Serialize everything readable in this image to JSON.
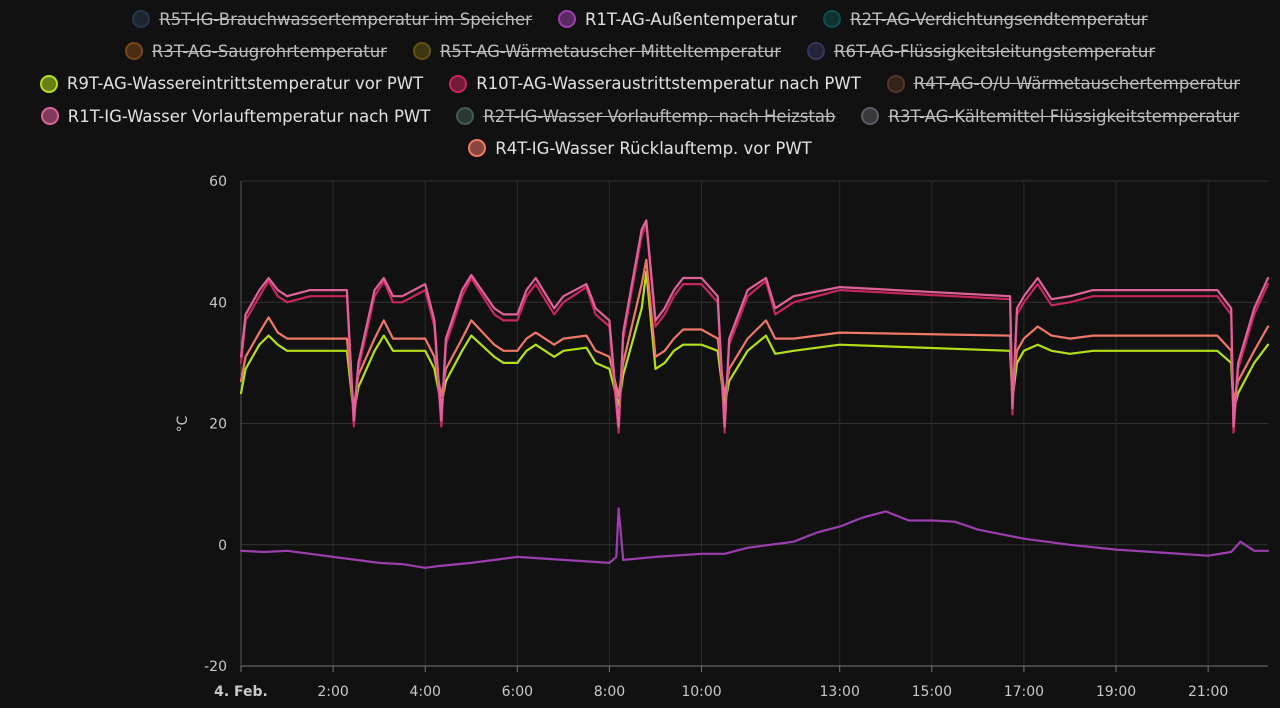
{
  "legend": [
    {
      "label": "R5T-IG-Brauchwassertemperatur im Speicher",
      "color": "#3e5d86",
      "visible": false,
      "row": 0
    },
    {
      "label": "R1T-AG-Außentemperatur",
      "color": "#9b3fae",
      "visible": true,
      "row": 0
    },
    {
      "label": "R2T-AG-Verdichtungsendtemperatur",
      "color": "#0a8f8a",
      "visible": false,
      "row": 0
    },
    {
      "label": "R3T-AG-Saugrohrtemperatur",
      "color": "#e07b18",
      "visible": false,
      "row": 1
    },
    {
      "label": "R5T-AG-Wärmetauscher Mitteltemperatur",
      "color": "#b59410",
      "visible": false,
      "row": 1
    },
    {
      "label": "R6T-AG-Flüssigkeitsleitungstemperatur",
      "color": "#5a5ea8",
      "visible": false,
      "row": 1
    },
    {
      "label": "R9T-AG-Wassereintrittstemperatur vor PWT",
      "color": "#b4e018",
      "visible": true,
      "row": 2
    },
    {
      "label": "R10T-AG-Wasseraustrittstemperatur nach PWT",
      "color": "#c8265e",
      "visible": true,
      "row": 2
    },
    {
      "label": "R4T-AG-O/U Wärmetauschertemperatur",
      "color": "#9c5a3a",
      "visible": false,
      "row": 2
    },
    {
      "label": "R1T-IG-Wasser Vorlauftemperatur nach PWT",
      "color": "#e0629c",
      "visible": true,
      "row": 3
    },
    {
      "label": "R2T-IG-Wasser Vorlauftemp. nach Heizstab",
      "color": "#6fa99a",
      "visible": false,
      "row": 3
    },
    {
      "label": "R3T-AG-Kältemittel Flüssigkeitstemperatur",
      "color": "#a8a4b8",
      "visible": false,
      "row": 3
    },
    {
      "label": "R4T-IG-Wasser Rücklauftemp. vor PWT",
      "color": "#f07868",
      "visible": true,
      "row": 4
    }
  ],
  "chart_data": {
    "type": "line",
    "ylabel": "°C",
    "ylim": [
      -20,
      60
    ],
    "yticks": [
      -20,
      0,
      20,
      40,
      60
    ],
    "xlim": [
      0,
      22.3
    ],
    "xticks": [
      {
        "v": 0,
        "label": "4. Feb.",
        "bold": true
      },
      {
        "v": 2,
        "label": "2:00"
      },
      {
        "v": 4,
        "label": "4:00"
      },
      {
        "v": 6,
        "label": "6:00"
      },
      {
        "v": 8,
        "label": "8:00"
      },
      {
        "v": 10,
        "label": "10:00"
      },
      {
        "v": 13,
        "label": "13:00"
      },
      {
        "v": 15,
        "label": "15:00"
      },
      {
        "v": 17,
        "label": "17:00"
      },
      {
        "v": 19,
        "label": "19:00"
      },
      {
        "v": 21,
        "label": "21:00"
      }
    ],
    "grid": true,
    "series": [
      {
        "name": "R1T-AG-Außentemperatur",
        "color": "#9b3fae",
        "x": [
          0,
          0.5,
          1,
          1.5,
          2,
          2.5,
          3,
          3.5,
          4,
          4.3,
          5,
          6,
          7,
          8,
          8.15,
          8.2,
          8.3,
          9,
          10,
          10.5,
          11,
          12,
          12.5,
          13,
          13.5,
          14,
          14.5,
          15,
          15.5,
          16,
          17,
          18,
          19,
          20,
          21,
          21.5,
          21.7,
          22,
          22.3
        ],
        "y": [
          -1,
          -1.2,
          -1,
          -1.5,
          -2,
          -2.5,
          -3,
          -3.2,
          -3.8,
          -3.5,
          -3,
          -2,
          -2.5,
          -3,
          -2,
          6,
          -2.5,
          -2,
          -1.5,
          -1.5,
          -0.5,
          0.5,
          2,
          3,
          4.5,
          5.5,
          4,
          4,
          3.8,
          2.5,
          1,
          0,
          -0.8,
          -1.3,
          -1.8,
          -1.2,
          0.5,
          -1,
          -1
        ]
      },
      {
        "name": "R9T-AG-Wassereintrittstemperatur vor PWT",
        "color": "#b4e018",
        "x": [
          0,
          0.1,
          0.4,
          0.6,
          0.8,
          1.0,
          1.5,
          2.3,
          2.45,
          2.55,
          2.9,
          3.1,
          3.3,
          3.5,
          4.0,
          4.2,
          4.35,
          4.45,
          4.8,
          5.0,
          5.5,
          5.7,
          6.0,
          6.2,
          6.4,
          6.8,
          7.0,
          7.5,
          7.7,
          8.0,
          8.2,
          8.3,
          8.7,
          8.8,
          9.0,
          9.2,
          9.4,
          9.6,
          9.8,
          10.0,
          10.35,
          10.5,
          10.6,
          11.0,
          11.4,
          11.6,
          12.0,
          13.0,
          16.7,
          16.75,
          16.85,
          17.0,
          17.3,
          17.6,
          18.0,
          18.5,
          21.2,
          21.5,
          21.55,
          21.65,
          22.0,
          22.3
        ],
        "y": [
          25,
          29,
          33,
          34.5,
          33,
          32,
          32,
          32,
          21.5,
          26,
          32,
          34.5,
          32,
          32,
          32,
          29,
          23,
          27,
          32,
          34.5,
          31,
          30,
          30,
          32,
          33,
          31,
          32,
          32.5,
          30,
          29,
          23,
          28,
          39,
          45,
          29,
          30,
          32,
          33,
          33,
          33,
          32,
          23,
          27,
          32,
          34.5,
          31.5,
          32,
          33,
          32,
          24,
          30,
          32,
          33,
          32,
          31.5,
          32,
          32,
          30,
          22,
          25,
          30,
          33
        ]
      },
      {
        "name": "R4T-IG-Wasser Rücklauftemp. vor PWT",
        "color": "#f07868",
        "x": [
          0,
          0.1,
          0.4,
          0.6,
          0.8,
          1.0,
          1.5,
          2.3,
          2.45,
          2.55,
          2.9,
          3.1,
          3.3,
          3.5,
          4.0,
          4.2,
          4.35,
          4.45,
          4.8,
          5.0,
          5.5,
          5.7,
          6.0,
          6.2,
          6.4,
          6.8,
          7.0,
          7.5,
          7.7,
          8.0,
          8.2,
          8.3,
          8.7,
          8.8,
          9.0,
          9.2,
          9.4,
          9.6,
          9.8,
          10.0,
          10.35,
          10.5,
          10.6,
          11.0,
          11.4,
          11.6,
          12.0,
          13.0,
          16.7,
          16.75,
          16.85,
          17.0,
          17.3,
          17.6,
          18.0,
          18.5,
          21.2,
          21.5,
          21.55,
          21.65,
          22.0,
          22.3
        ],
        "y": [
          27,
          31,
          35,
          37.5,
          35,
          34,
          34,
          34,
          22.5,
          28,
          34,
          37,
          34,
          34,
          34,
          31,
          24.5,
          29,
          34,
          37,
          33,
          32,
          32,
          34,
          35,
          33,
          34,
          34.5,
          32,
          31,
          24.5,
          30,
          43,
          47,
          31,
          32,
          34,
          35.5,
          35.5,
          35.5,
          34,
          24.5,
          29,
          34,
          37,
          34,
          34,
          35,
          34.5,
          25.5,
          32,
          34,
          36,
          34.5,
          34,
          34.5,
          34.5,
          32,
          23.5,
          27,
          32,
          36
        ]
      },
      {
        "name": "R10T-AG-Wasseraustrittstemperatur nach PWT",
        "color": "#c8265e",
        "x": [
          0,
          0.1,
          0.4,
          0.6,
          0.8,
          1.0,
          1.5,
          2.3,
          2.45,
          2.55,
          2.9,
          3.1,
          3.3,
          3.5,
          4.0,
          4.2,
          4.35,
          4.45,
          4.8,
          5.0,
          5.5,
          5.7,
          6.0,
          6.2,
          6.4,
          6.8,
          7.0,
          7.5,
          7.7,
          8.0,
          8.2,
          8.3,
          8.7,
          8.8,
          9.0,
          9.2,
          9.4,
          9.6,
          9.8,
          10.0,
          10.35,
          10.5,
          10.6,
          11.0,
          11.4,
          11.6,
          12.0,
          13.0,
          16.7,
          16.75,
          16.85,
          17.0,
          17.3,
          17.6,
          18.0,
          18.5,
          21.2,
          21.5,
          21.55,
          21.65,
          22.0,
          22.3
        ],
        "y": [
          30,
          37,
          41,
          43.5,
          41,
          40,
          41,
          41,
          19.5,
          29,
          41,
          43.5,
          40,
          40,
          42,
          36,
          19.5,
          33,
          41,
          44,
          38,
          37,
          37,
          41,
          43,
          38,
          40,
          42.5,
          38,
          36,
          18.5,
          34,
          51,
          53,
          36,
          38,
          41,
          43,
          43,
          43,
          40,
          18.5,
          33,
          41,
          43.5,
          38,
          40,
          42,
          40.5,
          21.5,
          38,
          40,
          43,
          39.5,
          40,
          41,
          41,
          38,
          18.5,
          29,
          38,
          43
        ]
      },
      {
        "name": "R1T-IG-Wasser Vorlauftemperatur nach PWT",
        "color": "#e0629c",
        "x": [
          0,
          0.1,
          0.4,
          0.6,
          0.8,
          1.0,
          1.5,
          2.3,
          2.45,
          2.55,
          2.9,
          3.1,
          3.3,
          3.5,
          4.0,
          4.2,
          4.35,
          4.45,
          4.8,
          5.0,
          5.5,
          5.7,
          6.0,
          6.2,
          6.4,
          6.8,
          7.0,
          7.5,
          7.7,
          8.0,
          8.2,
          8.3,
          8.7,
          8.8,
          9.0,
          9.2,
          9.4,
          9.6,
          9.8,
          10.0,
          10.35,
          10.5,
          10.6,
          11.0,
          11.4,
          11.6,
          12.0,
          13.0,
          16.7,
          16.75,
          16.85,
          17.0,
          17.3,
          17.6,
          18.0,
          18.5,
          21.2,
          21.5,
          21.55,
          21.65,
          22.0,
          22.3
        ],
        "y": [
          31,
          38,
          42,
          44,
          42,
          41,
          42,
          42,
          20.5,
          30,
          42,
          44,
          41,
          41,
          43,
          37,
          20.5,
          34,
          42,
          44.5,
          39,
          38,
          38,
          42,
          44,
          39,
          41,
          43,
          39,
          37,
          19.5,
          35,
          52,
          53.5,
          37,
          39,
          42,
          44,
          44,
          44,
          41,
          19.5,
          34,
          42,
          44,
          39,
          41,
          42.5,
          41,
          22.5,
          39,
          41,
          44,
          40.5,
          41,
          42,
          42,
          39,
          19.5,
          30,
          39,
          44
        ]
      }
    ]
  }
}
